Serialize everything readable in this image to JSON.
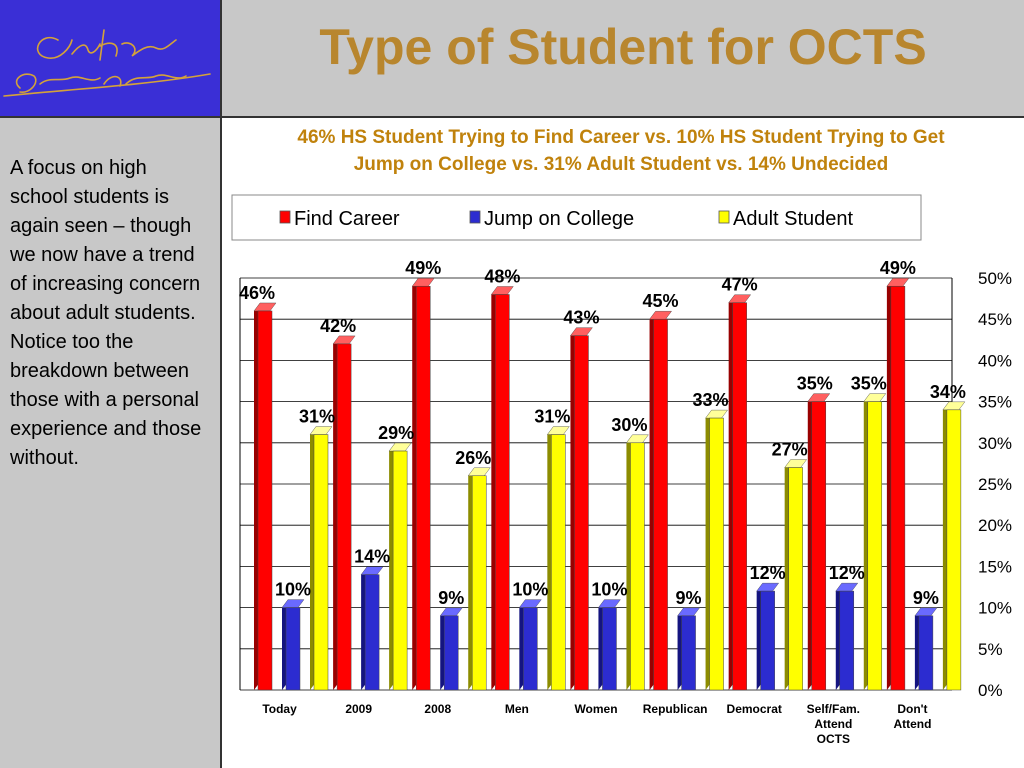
{
  "header": {
    "title": "Type of Student for OCTS",
    "logo_line1": "Cole Hargrave",
    "logo_line2": "Snodgrass & Associates"
  },
  "side_panel": {
    "text": "A focus on high school students is again seen – though we now have a trend of increasing concern about adult students. Notice too the breakdown between those with a personal experience and those without."
  },
  "colors": {
    "find_career": "#ff0000",
    "jump_on_college": "#2c2cd0",
    "adult_student": "#ffff00",
    "title": "#b8862e",
    "subtitle": "#c0820c"
  },
  "chart_data": {
    "type": "bar",
    "title": "46% HS Student Trying to Find Career vs. 10% HS Student Trying to Get Jump on College vs. 31% Adult Student vs. 14% Undecided",
    "categories": [
      [
        "Today"
      ],
      [
        "2009"
      ],
      [
        "2008"
      ],
      [
        "Men"
      ],
      [
        "Women"
      ],
      [
        "Republican"
      ],
      [
        "Democrat"
      ],
      [
        "Self/Fam.",
        "Attend",
        "OCTS"
      ],
      [
        "Don't",
        "Attend"
      ]
    ],
    "series": [
      {
        "name": "Find Career",
        "values": [
          46,
          42,
          49,
          48,
          43,
          45,
          47,
          35,
          49
        ]
      },
      {
        "name": "Jump on College",
        "values": [
          10,
          14,
          9,
          10,
          10,
          9,
          12,
          12,
          9
        ]
      },
      {
        "name": "Adult Student",
        "values": [
          31,
          29,
          26,
          31,
          30,
          33,
          27,
          35,
          34
        ]
      }
    ],
    "ylim": [
      0,
      50
    ],
    "yticks": [
      "0%",
      "5%",
      "10%",
      "15%",
      "20%",
      "25%",
      "30%",
      "35%",
      "40%",
      "45%",
      "50%"
    ],
    "grid": true,
    "legend": "top"
  }
}
